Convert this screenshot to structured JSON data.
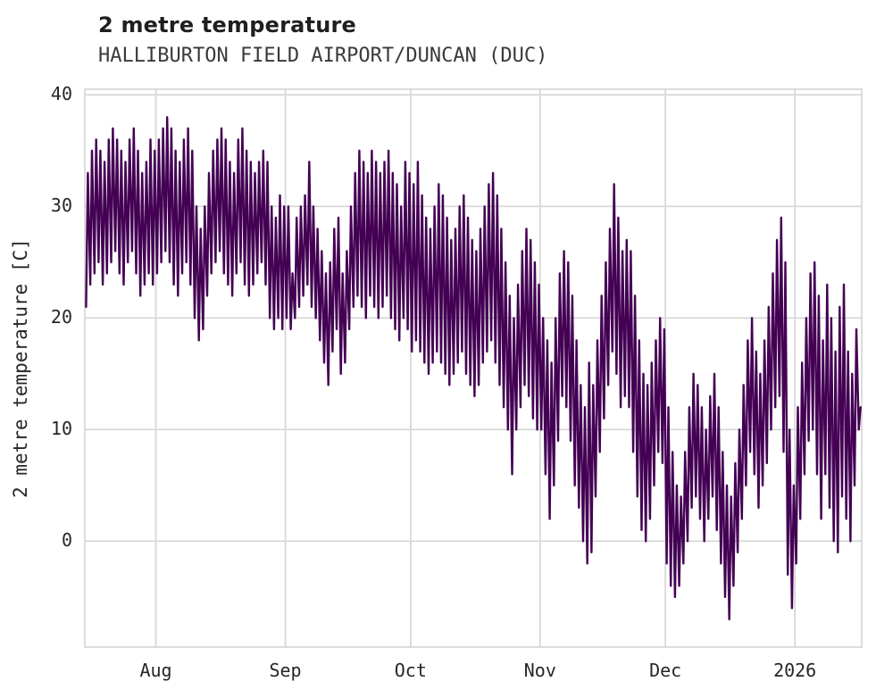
{
  "header": {
    "title": "2 metre temperature",
    "subtitle": "HALLIBURTON FIELD AIRPORT/DUNCAN (DUC)"
  },
  "chart_data": {
    "type": "line",
    "title": "2 metre temperature",
    "subtitle": "HALLIBURTON FIELD AIRPORT/DUNCAN (DUC)",
    "xlabel": "",
    "ylabel": "2 metre temperature [C]",
    "ylim": [
      -9.5,
      40.5
    ],
    "yticks": [
      0,
      10,
      20,
      30,
      40
    ],
    "grid": true,
    "legend": "none",
    "line_color": "#440154",
    "grid_color": "#d8d8d8",
    "frame_color": "#d0d0d0",
    "text_color": "#262626",
    "x_start_estimate": "mid-July 2025",
    "total_days": 186,
    "xticks": [
      {
        "label": "Aug",
        "day": 17
      },
      {
        "label": "Sep",
        "day": 48
      },
      {
        "label": "Oct",
        "day": 78
      },
      {
        "label": "Nov",
        "day": 109
      },
      {
        "label": "Dec",
        "day": 139
      },
      {
        "label": "2026",
        "day": 170
      }
    ],
    "series": [
      {
        "name": "2 metre temperature",
        "sampling": "two points per day (daily min then daily max)",
        "daily_max": [
          33,
          35,
          36,
          35,
          34,
          36,
          37,
          36,
          35,
          34,
          36,
          37,
          35,
          33,
          34,
          36,
          35,
          36,
          37,
          38,
          37,
          35,
          34,
          36,
          37,
          35,
          30,
          28,
          30,
          33,
          35,
          36,
          37,
          36,
          34,
          33,
          36,
          37,
          35,
          34,
          33,
          34,
          35,
          34,
          30,
          29,
          31,
          30,
          30,
          24,
          29,
          30,
          31,
          34,
          30,
          28,
          26,
          24,
          25,
          28,
          29,
          24,
          26,
          30,
          33,
          35,
          34,
          33,
          35,
          34,
          33,
          34,
          35,
          33,
          32,
          30,
          34,
          33,
          32,
          34,
          31,
          29,
          28,
          30,
          32,
          31,
          29,
          27,
          28,
          30,
          31,
          29,
          27,
          26,
          28,
          30,
          32,
          33,
          31,
          28,
          25,
          22,
          20,
          23,
          26,
          28,
          27,
          25,
          23,
          20,
          18,
          16,
          20,
          24,
          26,
          25,
          22,
          18,
          14,
          12,
          16,
          14,
          18,
          22,
          25,
          28,
          32,
          29,
          26,
          27,
          26,
          22,
          18,
          15,
          14,
          16,
          18,
          20,
          19,
          12,
          8,
          5,
          4,
          8,
          12,
          15,
          14,
          12,
          10,
          13,
          15,
          12,
          8,
          5,
          4,
          7,
          10,
          14,
          18,
          20,
          17,
          15,
          18,
          21,
          24,
          27,
          29,
          25,
          10,
          5,
          12,
          16,
          20,
          24,
          25,
          22,
          18,
          23,
          20,
          17,
          21,
          23,
          17,
          15,
          19,
          12
        ],
        "daily_min": [
          21,
          23,
          24,
          25,
          23,
          24,
          25,
          26,
          24,
          23,
          25,
          26,
          24,
          22,
          23,
          24,
          23,
          24,
          25,
          26,
          25,
          23,
          22,
          24,
          25,
          23,
          20,
          18,
          19,
          22,
          24,
          25,
          26,
          24,
          23,
          22,
          24,
          25,
          23,
          22,
          23,
          24,
          25,
          23,
          20,
          19,
          20,
          19,
          20,
          19,
          20,
          21,
          22,
          23,
          21,
          20,
          18,
          16,
          14,
          17,
          19,
          15,
          16,
          19,
          21,
          22,
          21,
          20,
          22,
          21,
          20,
          21,
          22,
          20,
          19,
          18,
          20,
          19,
          17,
          18,
          17,
          16,
          15,
          16,
          17,
          16,
          15,
          14,
          15,
          16,
          17,
          15,
          14,
          13,
          14,
          16,
          17,
          18,
          16,
          14,
          12,
          10,
          6,
          10,
          12,
          14,
          13,
          11,
          10,
          10,
          6,
          2,
          5,
          9,
          13,
          12,
          9,
          5,
          3,
          0,
          -2,
          -1,
          4,
          8,
          11,
          14,
          17,
          15,
          12,
          13,
          12,
          8,
          4,
          1,
          0,
          2,
          5,
          8,
          7,
          -2,
          -4,
          -5,
          -4,
          -2,
          0,
          3,
          4,
          2,
          0,
          2,
          4,
          1,
          -2,
          -5,
          -7,
          -4,
          -1,
          2,
          5,
          8,
          6,
          3,
          5,
          7,
          10,
          12,
          13,
          8,
          -3,
          -6,
          -2,
          2,
          6,
          9,
          10,
          6,
          2,
          6,
          3,
          0,
          -1,
          4,
          2,
          0,
          5,
          10
        ]
      }
    ]
  }
}
